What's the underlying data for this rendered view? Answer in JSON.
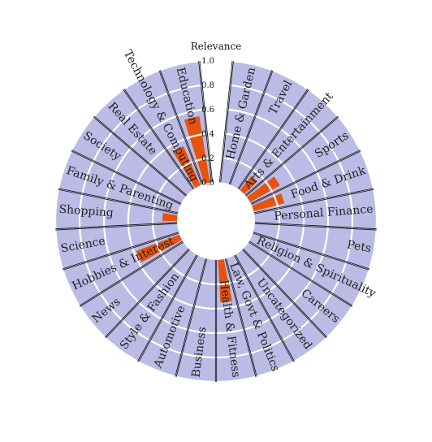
{
  "chart_data": {
    "type": "radial-bar",
    "axis_title": "Relevance",
    "rlim": [
      0,
      1.0
    ],
    "ticks": [
      "0.0",
      "0.2",
      "0.4",
      "0.6",
      "0.8",
      "1.0"
    ],
    "tick_values": [
      0,
      0.2,
      0.4,
      0.6,
      0.8,
      1.0
    ],
    "colors": {
      "background": "#bbbbe6",
      "bar": "#e8520f",
      "grid": "#ffffff",
      "separator": "#111111"
    },
    "categories": [
      {
        "label": "Home & Garden",
        "value": 0.0
      },
      {
        "label": "Travel",
        "value": 0.0
      },
      {
        "label": "Arts & Entertainment",
        "value": 0.15
      },
      {
        "label": "Sports",
        "value": 0.28
      },
      {
        "label": "Food & Drink",
        "value": 0.26
      },
      {
        "label": "Personal Finance",
        "value": 0.0
      },
      {
        "label": "Pets",
        "value": 0.0
      },
      {
        "label": "Religion & Spirituality",
        "value": 0.0
      },
      {
        "label": "Careers",
        "value": 0.0
      },
      {
        "label": "Uncategorized",
        "value": 0.0
      },
      {
        "label": "Law, Govt & Politics",
        "value": 0.0
      },
      {
        "label": "Health & Fitness",
        "value": 0.35
      },
      {
        "label": "Business",
        "value": 0.0
      },
      {
        "label": "Automotive",
        "value": 0.0
      },
      {
        "label": "Style & Fashion",
        "value": 0.0
      },
      {
        "label": "News",
        "value": 0.0
      },
      {
        "label": "Hobbies & Interest",
        "value": 0.38
      },
      {
        "label": "Science",
        "value": 0.0
      },
      {
        "label": "Shopping",
        "value": 0.12
      },
      {
        "label": "Family & Parenting",
        "value": 0.0
      },
      {
        "label": "Society",
        "value": 0.0
      },
      {
        "label": "Real Estate",
        "value": 0.0
      },
      {
        "label": "Technology & Computing",
        "value": 0.35
      },
      {
        "label": "Education",
        "value": 0.55
      }
    ]
  }
}
